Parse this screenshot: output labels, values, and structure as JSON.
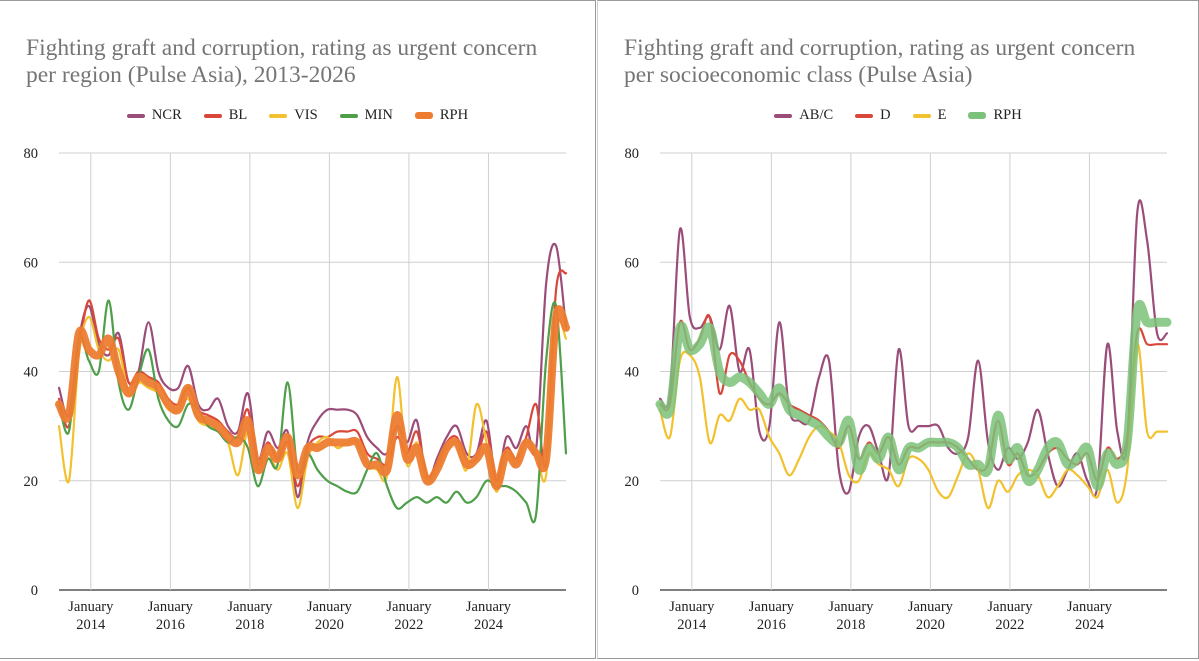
{
  "chart_data": [
    {
      "type": "line",
      "title": "Fighting graft and corruption, rating as urgent concern per region (Pulse Asia), 2013-2026",
      "ylim": [
        0,
        80
      ],
      "y_ticks": [
        "0",
        "20",
        "40",
        "60",
        "80"
      ],
      "x_tick_labels": [
        {
          "month": "January",
          "year": "2014"
        },
        {
          "month": "January",
          "year": "2016"
        },
        {
          "month": "January",
          "year": "2018"
        },
        {
          "month": "January",
          "year": "2020"
        },
        {
          "month": "January",
          "year": "2022"
        },
        {
          "month": "January",
          "year": "2024"
        }
      ],
      "grid": true,
      "legend_position": "top",
      "x": [
        2013.2,
        2013.45,
        2013.7,
        2013.95,
        2014.2,
        2014.45,
        2014.7,
        2014.95,
        2015.2,
        2015.45,
        2015.7,
        2015.95,
        2016.2,
        2016.45,
        2016.7,
        2016.95,
        2017.2,
        2017.45,
        2017.7,
        2017.95,
        2018.2,
        2018.45,
        2018.7,
        2018.95,
        2019.2,
        2019.45,
        2019.7,
        2019.95,
        2020.2,
        2020.45,
        2020.7,
        2020.95,
        2021.2,
        2021.45,
        2021.7,
        2021.95,
        2022.2,
        2022.45,
        2022.7,
        2022.95,
        2023.2,
        2023.45,
        2023.7,
        2023.95,
        2024.2,
        2024.45,
        2024.7,
        2024.95,
        2025.2,
        2025.45,
        2025.7,
        2025.95
      ],
      "series": [
        {
          "name": "NCR",
          "color": "#9b4d7a",
          "width": 2.2,
          "values": [
            37,
            32,
            46,
            52,
            45,
            43,
            47,
            38,
            40,
            49,
            40,
            37,
            37,
            41,
            34,
            33,
            35,
            30,
            29,
            36,
            24,
            29,
            26,
            29,
            17,
            27,
            31,
            33,
            33,
            33,
            32,
            28,
            26,
            25,
            30,
            27,
            31,
            20,
            24,
            28,
            30,
            25,
            25,
            31,
            20,
            28,
            26,
            30,
            26,
            56,
            63,
            48
          ]
        },
        {
          "name": "BL",
          "color": "#d9473b",
          "width": 2.2,
          "values": [
            35,
            30,
            44,
            53,
            46,
            44,
            46,
            38,
            40,
            39,
            38,
            35,
            34,
            37,
            33,
            32,
            31,
            29,
            28,
            33,
            23,
            27,
            24,
            27,
            19,
            26,
            28,
            28,
            29,
            29,
            29,
            25,
            24,
            23,
            28,
            25,
            29,
            21,
            23,
            27,
            28,
            24,
            24,
            29,
            20,
            26,
            24,
            28,
            34,
            23,
            55,
            58
          ]
        },
        {
          "name": "VIS",
          "color": "#f2c12e",
          "width": 2.2,
          "values": [
            30,
            20,
            43,
            50,
            44,
            42,
            44,
            36,
            38,
            37,
            36,
            33,
            33,
            35,
            31,
            30,
            29,
            27,
            21,
            29,
            22,
            25,
            22,
            25,
            15,
            24,
            27,
            28,
            26,
            27,
            27,
            23,
            22,
            21,
            39,
            23,
            27,
            20,
            22,
            26,
            27,
            22,
            34,
            27,
            18,
            25,
            23,
            27,
            25,
            21,
            48,
            46
          ]
        },
        {
          "name": "MIN",
          "color": "#4e9e4a",
          "width": 2.2,
          "values": [
            34,
            29,
            46,
            42,
            40,
            53,
            38,
            33,
            39,
            44,
            35,
            31,
            30,
            34,
            33,
            30,
            29,
            27,
            28,
            26,
            19,
            24,
            23,
            38,
            22,
            25,
            22,
            20,
            19,
            18,
            18,
            22,
            25,
            19,
            15,
            16,
            17,
            16,
            17,
            16,
            18,
            16,
            17,
            20,
            19,
            19,
            18,
            16,
            14,
            42,
            52,
            25
          ]
        },
        {
          "name": "RPH",
          "color": "#ed7c31",
          "width": 8,
          "values": [
            34,
            32,
            47,
            44,
            43,
            46,
            40,
            36,
            39,
            38,
            37,
            34,
            33,
            37,
            32,
            31,
            30,
            28,
            27,
            31,
            22,
            26,
            24,
            28,
            21,
            26,
            26,
            27,
            27,
            27,
            27,
            23,
            23,
            22,
            32,
            24,
            26,
            20,
            22,
            26,
            27,
            23,
            24,
            26,
            19,
            25,
            23,
            27,
            25,
            24,
            50,
            48
          ]
        }
      ]
    },
    {
      "type": "line",
      "title": "Fighting graft and corruption, rating as urgent concern per socioeconomic class (Pulse Asia)",
      "ylim": [
        0,
        80
      ],
      "y_ticks": [
        "0",
        "20",
        "40",
        "60",
        "80"
      ],
      "x_tick_labels": [
        {
          "month": "January",
          "year": "2014"
        },
        {
          "month": "January",
          "year": "2016"
        },
        {
          "month": "January",
          "year": "2018"
        },
        {
          "month": "January",
          "year": "2020"
        },
        {
          "month": "January",
          "year": "2022"
        },
        {
          "month": "January",
          "year": "2024"
        }
      ],
      "grid": true,
      "legend_position": "top",
      "x": [
        2013.2,
        2013.45,
        2013.7,
        2013.95,
        2014.2,
        2014.45,
        2014.7,
        2014.95,
        2015.2,
        2015.45,
        2015.7,
        2015.95,
        2016.2,
        2016.45,
        2016.7,
        2016.95,
        2017.2,
        2017.45,
        2017.7,
        2017.95,
        2018.2,
        2018.45,
        2018.7,
        2018.95,
        2019.2,
        2019.45,
        2019.7,
        2019.95,
        2020.2,
        2020.45,
        2020.7,
        2020.95,
        2021.2,
        2021.45,
        2021.7,
        2021.95,
        2022.2,
        2022.45,
        2022.7,
        2022.95,
        2023.2,
        2023.45,
        2023.7,
        2023.95,
        2024.2,
        2024.45,
        2024.7,
        2024.95,
        2025.2,
        2025.45,
        2025.7,
        2025.95
      ],
      "series": [
        {
          "name": "AB/C",
          "color": "#9b4d7a",
          "width": 2.2,
          "values": [
            35,
            36,
            66,
            50,
            48,
            50,
            44,
            52,
            40,
            44,
            29,
            30,
            49,
            33,
            31,
            31,
            39,
            42,
            22,
            18,
            28,
            30,
            25,
            21,
            44,
            30,
            30,
            30,
            30,
            26,
            25,
            28,
            42,
            27,
            22,
            26,
            24,
            27,
            33,
            25,
            19,
            22,
            25,
            20,
            19,
            45,
            29,
            27,
            69,
            64,
            47,
            47
          ]
        },
        {
          "name": "D",
          "color": "#d9473b",
          "width": 2.2,
          "values": [
            34,
            34,
            49,
            44,
            46,
            50,
            36,
            43,
            42,
            38,
            35,
            34,
            36,
            34,
            33,
            32,
            31,
            29,
            26,
            30,
            24,
            27,
            25,
            28,
            23,
            26,
            26,
            27,
            27,
            27,
            26,
            24,
            22,
            23,
            31,
            23,
            25,
            21,
            22,
            25,
            26,
            24,
            23,
            25,
            20,
            26,
            24,
            28,
            47,
            45,
            45,
            45
          ]
        },
        {
          "name": "E",
          "color": "#f2c12e",
          "width": 2.2,
          "values": [
            33,
            28,
            42,
            43,
            39,
            27,
            32,
            31,
            35,
            33,
            33,
            28,
            25,
            21,
            24,
            28,
            30,
            29,
            27,
            21,
            20,
            25,
            23,
            22,
            19,
            24,
            24,
            22,
            18,
            17,
            21,
            25,
            22,
            15,
            20,
            18,
            21,
            22,
            21,
            17,
            19,
            22,
            21,
            19,
            17,
            22,
            16,
            22,
            45,
            29,
            29,
            29
          ]
        },
        {
          "name": "RPH",
          "color": "#7dc27a",
          "width": 9,
          "values": [
            34,
            33,
            48,
            44,
            45,
            48,
            40,
            38,
            39,
            38,
            36,
            34,
            37,
            33,
            32,
            31,
            30,
            28,
            27,
            31,
            22,
            26,
            24,
            28,
            22,
            26,
            26,
            27,
            27,
            27,
            26,
            23,
            23,
            22,
            32,
            24,
            26,
            20,
            22,
            26,
            27,
            23,
            24,
            26,
            19,
            25,
            23,
            27,
            51,
            49,
            49,
            49
          ]
        }
      ]
    }
  ]
}
